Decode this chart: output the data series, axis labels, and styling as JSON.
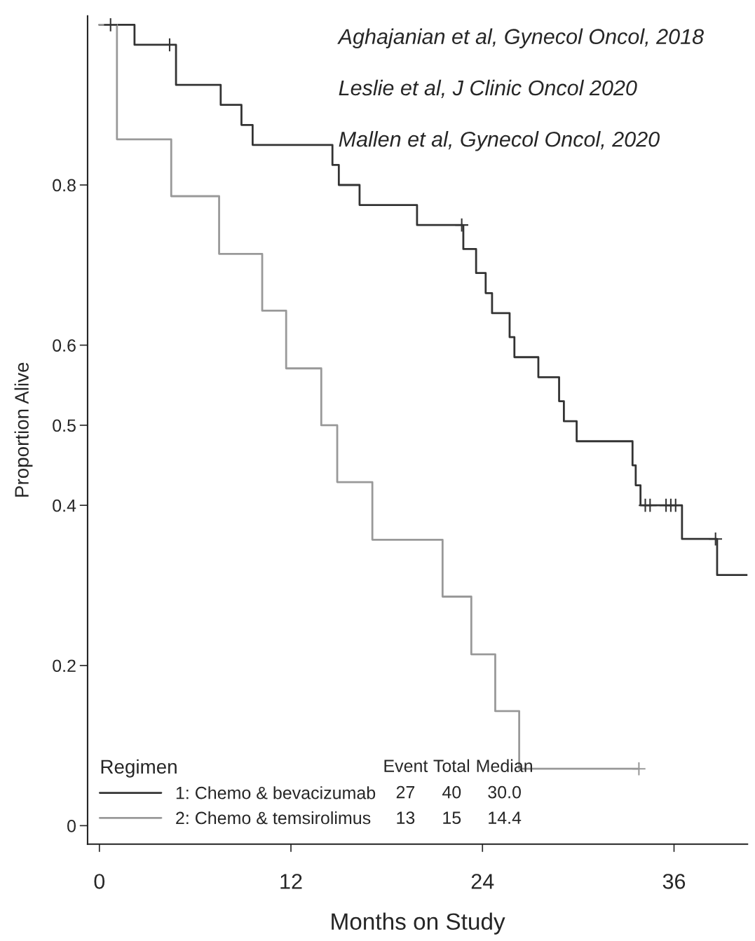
{
  "chart_data": {
    "type": "step",
    "xlabel": "Months on Study",
    "ylabel": "Proportion Alive",
    "legend_title": "Regimen",
    "legend": "bottom left",
    "grid": false,
    "line_style": "solid",
    "xlim": [
      -0.74,
      40.6
    ],
    "ylim": [
      -0.023,
      1.011
    ],
    "xticks": [
      0,
      12,
      24,
      36
    ],
    "yticks": [
      0,
      0.2,
      0.4,
      0.5,
      0.6,
      0.8
    ],
    "series": [
      {
        "name": "1: Chemo & bevacizumab",
        "color": "#333333",
        "x": [
          0,
          2.2,
          4.8,
          7.6,
          8.9,
          9.6,
          14.6,
          15.0,
          16.3,
          19.9,
          22.8,
          23.6,
          24.2,
          24.6,
          25.7,
          26.0,
          27.5,
          28.8,
          29.1,
          29.9,
          33.4,
          33.6,
          33.9,
          36.5,
          38.7,
          40.6
        ],
        "values": [
          1.0,
          0.975,
          0.925,
          0.9,
          0.875,
          0.85,
          0.825,
          0.8,
          0.775,
          0.75,
          0.72,
          0.69,
          0.665,
          0.64,
          0.61,
          0.585,
          0.56,
          0.53,
          0.505,
          0.48,
          0.45,
          0.425,
          0.4,
          0.358,
          0.313,
          0.313
        ]
      },
      {
        "name": "2: Chemo & temsirolimus",
        "color": "#999999",
        "x": [
          0,
          1.1,
          4.5,
          7.5,
          10.2,
          11.7,
          13.9,
          14.9,
          17.1,
          21.5,
          23.3,
          24.8,
          26.3,
          33.8
        ],
        "values": [
          1.0,
          0.857,
          0.786,
          0.714,
          0.643,
          0.571,
          0.5,
          0.429,
          0.357,
          0.286,
          0.214,
          0.143,
          0.071,
          0.071
        ]
      },
      {
        "type": "scatter",
        "marker": "cross",
        "color": "#333333",
        "x": [
          0.7,
          4.4,
          22.7,
          34.2,
          34.5,
          35.5,
          35.8,
          36.1,
          38.6
        ],
        "values": [
          1.0,
          0.975,
          0.75,
          0.4,
          0.4,
          0.4,
          0.4,
          0.4,
          0.358
        ]
      },
      {
        "type": "scatter",
        "marker": "cross",
        "color": "#999999",
        "x": [
          33.8
        ],
        "values": [
          0.071
        ]
      }
    ],
    "annotations": [
      "Aghajanian et al, Gynecol Oncol, 2018",
      "Leslie et al, J Clinic Oncol 2020",
      "Mallen et al, Gynecol Oncol, 2020",
      "Event",
      "Total",
      "Median",
      "27",
      "40",
      "30.0",
      "13",
      "15",
      "14.4"
    ]
  }
}
